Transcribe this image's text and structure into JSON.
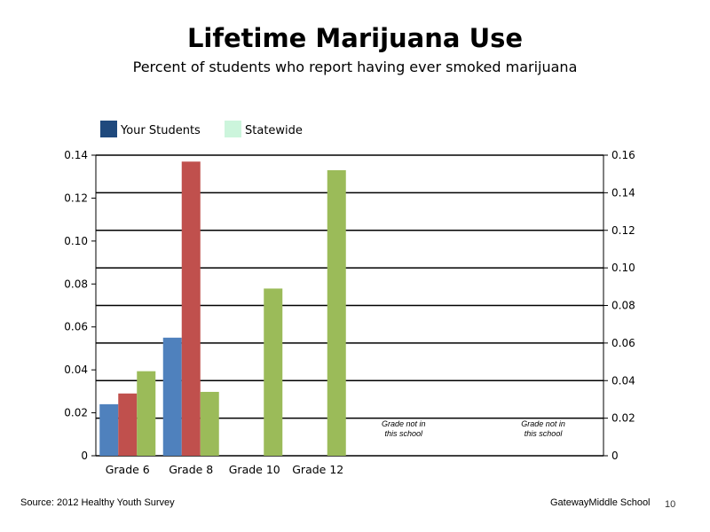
{
  "header": {
    "title": "Lifetime Marijuana Use",
    "subtitle": "Percent of students who report having ever smoked marijuana"
  },
  "footer": {
    "source": "Source: 2012 Healthy Youth Survey",
    "school": "GatewayMiddle  School",
    "page_number": "10"
  },
  "legend": [
    {
      "label": "Your Students",
      "color": "#1f497d"
    },
    {
      "label": "Statewide",
      "color": "#ccf5dc"
    }
  ],
  "colors": {
    "blue": "#4f81bd",
    "red": "#c0504d",
    "green": "#9bbb59"
  },
  "chart_data": {
    "type": "bar",
    "categories": [
      "Grade 6",
      "Grade 8",
      "Grade 10",
      "Grade 12",
      "",
      ""
    ],
    "series": [
      {
        "color": "#4f81bd",
        "axis": "left",
        "values": [
          0.024,
          0.055,
          null,
          null,
          null,
          null
        ]
      },
      {
        "color": "#c0504d",
        "axis": "left",
        "values": [
          0.029,
          0.137,
          null,
          null,
          null,
          null
        ]
      },
      {
        "color": "#9bbb59",
        "axis": "right",
        "values": [
          0.045,
          0.034,
          0.089,
          0.152,
          null,
          null
        ]
      }
    ],
    "left_axis": {
      "ylim": [
        0,
        0.14
      ],
      "ticks": [
        "0",
        "0.02",
        "0.04",
        "0.06",
        "0.08",
        "0.10",
        "0.12",
        "0.14"
      ]
    },
    "right_axis": {
      "ylim": [
        0,
        0.16
      ],
      "ticks": [
        "0",
        "0.02",
        "0.04",
        "0.06",
        "0.08",
        "0.10",
        "0.12",
        "0.14",
        "0.16"
      ]
    },
    "notes": [
      {
        "category_index": 4,
        "lines": [
          "Grade not in",
          "this school"
        ]
      },
      {
        "category_index": 5,
        "lines": [
          "Grade not in",
          "this school"
        ]
      }
    ],
    "legend_position": "top-left",
    "grid": true
  }
}
